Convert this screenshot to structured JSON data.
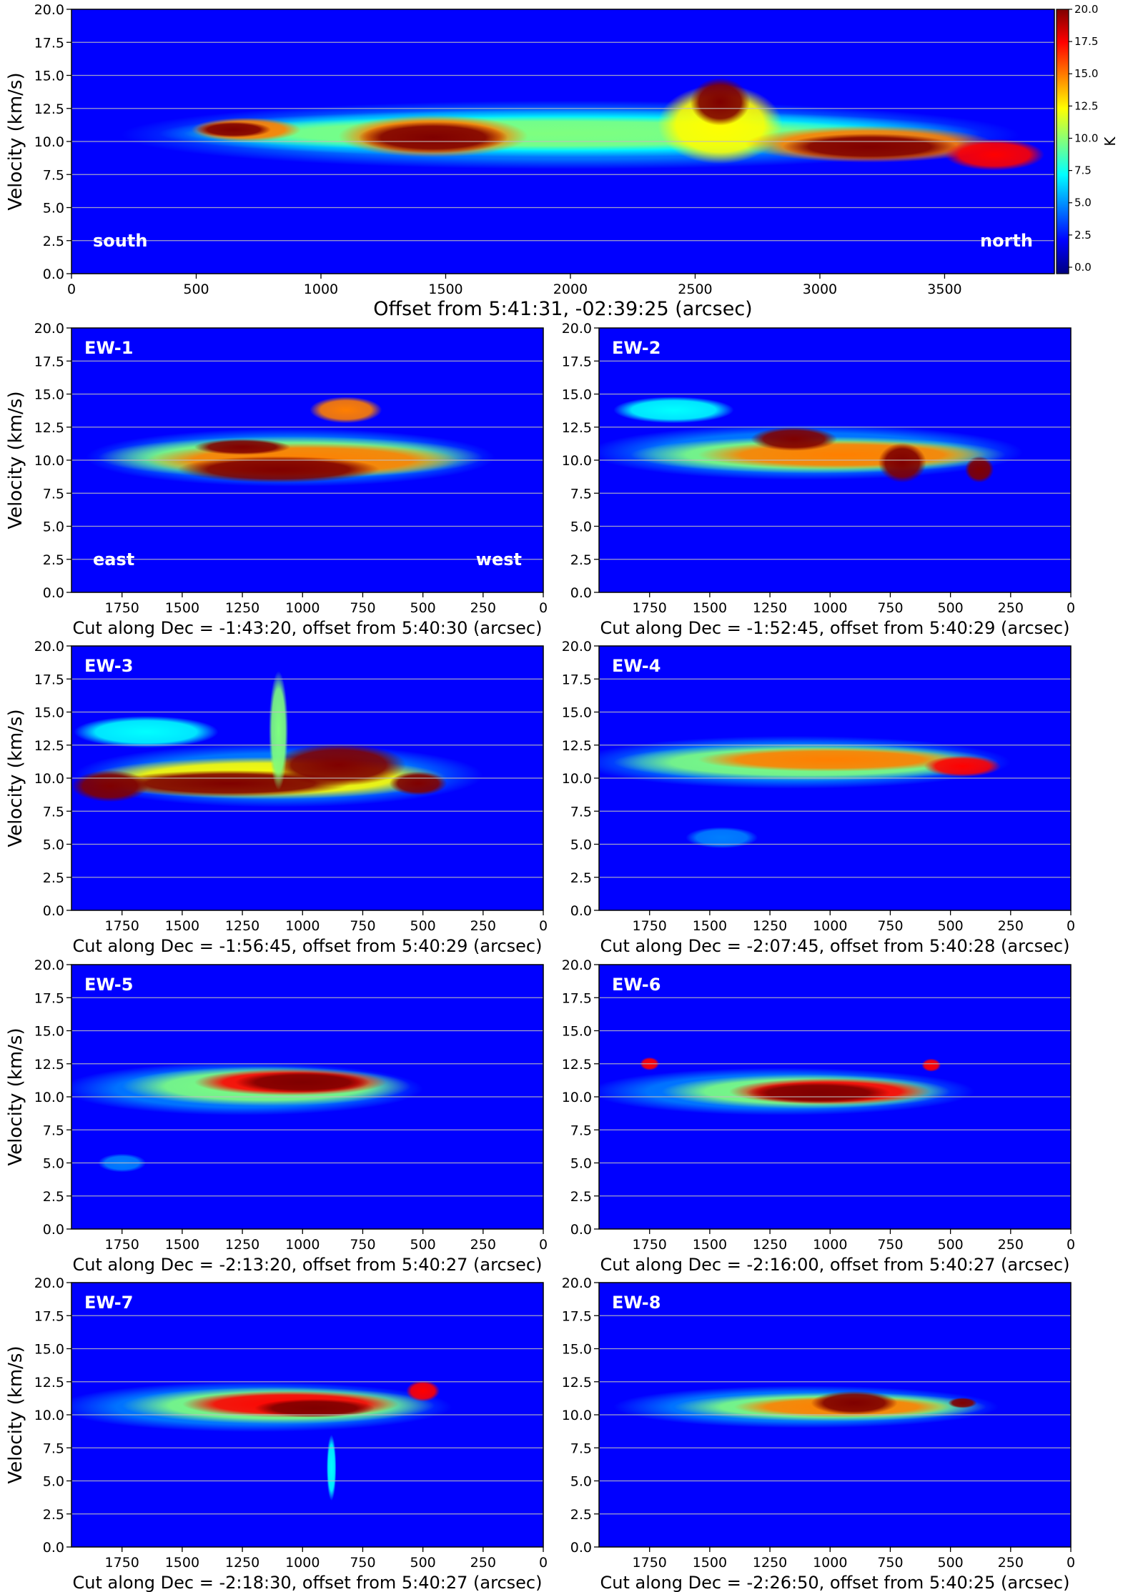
{
  "colors": {
    "jet": [
      "#00007f",
      "#0000ff",
      "#007fff",
      "#00ffff",
      "#7fff7f",
      "#ffff00",
      "#ff7f00",
      "#ff0000",
      "#7f0000"
    ],
    "gridline": "#bfbfbf",
    "label_text": "#ffffff"
  },
  "colorbar": {
    "label": "K",
    "ticks": [
      "20.0",
      "17.5",
      "15.0",
      "12.5",
      "10.0",
      "7.5",
      "5.0",
      "2.5",
      "0.0"
    ],
    "range": [
      -0.5,
      20
    ]
  },
  "chart_data": [
    {
      "type": "heatmap",
      "id": "main",
      "xlabel": "Offset from 5:41:31, -02:39:25 (arcsec)",
      "ylabel": "Velocity (km/s)",
      "xticks": [
        "0",
        "500",
        "1000",
        "1500",
        "2000",
        "2500",
        "3000",
        "3500"
      ],
      "yticks": [
        "0.0",
        "2.5",
        "5.0",
        "7.5",
        "10.0",
        "12.5",
        "15.0",
        "17.5",
        "20.0"
      ],
      "xlim": [
        0,
        3940
      ],
      "ylim": [
        0,
        20
      ],
      "annotations": [
        "south",
        "north"
      ],
      "colorbar": true
    },
    {
      "type": "heatmap",
      "id": "ew1",
      "panel_label": "EW-1",
      "xlabel": "Cut along Dec = -1:43:20, offset from 5:40:30 (arcsec)",
      "ylabel": "Velocity (km/s)",
      "xticks": [
        "1750",
        "1500",
        "1250",
        "1000",
        "750",
        "500",
        "250",
        "0"
      ],
      "yticks": [
        "0.0",
        "2.5",
        "5.0",
        "7.5",
        "10.0",
        "12.5",
        "15.0",
        "17.5",
        "20.0"
      ],
      "xlim": [
        1960,
        0
      ],
      "ylim": [
        0,
        20
      ],
      "annotations": [
        "east",
        "west"
      ]
    },
    {
      "type": "heatmap",
      "id": "ew2",
      "panel_label": "EW-2",
      "xlabel": "Cut along Dec = -1:52:45, offset from 5:40:29 (arcsec)",
      "ylabel": "",
      "xticks": [
        "1750",
        "1500",
        "1250",
        "1000",
        "750",
        "500",
        "250",
        "0"
      ],
      "yticks": [
        "0.0",
        "2.5",
        "5.0",
        "7.5",
        "10.0",
        "12.5",
        "15.0",
        "17.5",
        "20.0"
      ],
      "xlim": [
        1960,
        0
      ],
      "ylim": [
        0,
        20
      ]
    },
    {
      "type": "heatmap",
      "id": "ew3",
      "panel_label": "EW-3",
      "xlabel": "Cut along Dec = -1:56:45, offset from 5:40:29 (arcsec)",
      "ylabel": "Velocity (km/s)",
      "xticks": [
        "1750",
        "1500",
        "1250",
        "1000",
        "750",
        "500",
        "250",
        "0"
      ],
      "yticks": [
        "0.0",
        "2.5",
        "5.0",
        "7.5",
        "10.0",
        "12.5",
        "15.0",
        "17.5",
        "20.0"
      ],
      "xlim": [
        1960,
        0
      ],
      "ylim": [
        0,
        20
      ]
    },
    {
      "type": "heatmap",
      "id": "ew4",
      "panel_label": "EW-4",
      "xlabel": "Cut along Dec = -2:07:45, offset from 5:40:28 (arcsec)",
      "ylabel": "",
      "xticks": [
        "1750",
        "1500",
        "1250",
        "1000",
        "750",
        "500",
        "250",
        "0"
      ],
      "yticks": [
        "0.0",
        "2.5",
        "5.0",
        "7.5",
        "10.0",
        "12.5",
        "15.0",
        "17.5",
        "20.0"
      ],
      "xlim": [
        1960,
        0
      ],
      "ylim": [
        0,
        20
      ]
    },
    {
      "type": "heatmap",
      "id": "ew5",
      "panel_label": "EW-5",
      "xlabel": "Cut along Dec = -2:13:20, offset from 5:40:27 (arcsec)",
      "ylabel": "Velocity (km/s)",
      "xticks": [
        "1750",
        "1500",
        "1250",
        "1000",
        "750",
        "500",
        "250",
        "0"
      ],
      "yticks": [
        "0.0",
        "2.5",
        "5.0",
        "7.5",
        "10.0",
        "12.5",
        "15.0",
        "17.5",
        "20.0"
      ],
      "xlim": [
        1960,
        0
      ],
      "ylim": [
        0,
        20
      ]
    },
    {
      "type": "heatmap",
      "id": "ew6",
      "panel_label": "EW-6",
      "xlabel": "Cut along Dec = -2:16:00, offset from 5:40:27 (arcsec)",
      "ylabel": "",
      "xticks": [
        "1750",
        "1500",
        "1250",
        "1000",
        "750",
        "500",
        "250",
        "0"
      ],
      "yticks": [
        "0.0",
        "2.5",
        "5.0",
        "7.5",
        "10.0",
        "12.5",
        "15.0",
        "17.5",
        "20.0"
      ],
      "xlim": [
        1960,
        0
      ],
      "ylim": [
        0,
        20
      ]
    },
    {
      "type": "heatmap",
      "id": "ew7",
      "panel_label": "EW-7",
      "xlabel": "Cut along Dec = -2:18:30, offset from 5:40:27 (arcsec)",
      "ylabel": "Velocity (km/s)",
      "xticks": [
        "1750",
        "1500",
        "1250",
        "1000",
        "750",
        "500",
        "250",
        "0"
      ],
      "yticks": [
        "0.0",
        "2.5",
        "5.0",
        "7.5",
        "10.0",
        "12.5",
        "15.0",
        "17.5",
        "20.0"
      ],
      "xlim": [
        1960,
        0
      ],
      "ylim": [
        0,
        20
      ]
    },
    {
      "type": "heatmap",
      "id": "ew8",
      "panel_label": "EW-8",
      "xlabel": "Cut along Dec = -2:26:50, offset from 5:40:25 (arcsec)",
      "ylabel": "",
      "xticks": [
        "1750",
        "1500",
        "1250",
        "1000",
        "750",
        "500",
        "250",
        "0"
      ],
      "yticks": [
        "0.0",
        "2.5",
        "5.0",
        "7.5",
        "10.0",
        "12.5",
        "15.0",
        "17.5",
        "20.0"
      ],
      "xlim": [
        1960,
        0
      ],
      "ylim": [
        0,
        20
      ]
    }
  ]
}
